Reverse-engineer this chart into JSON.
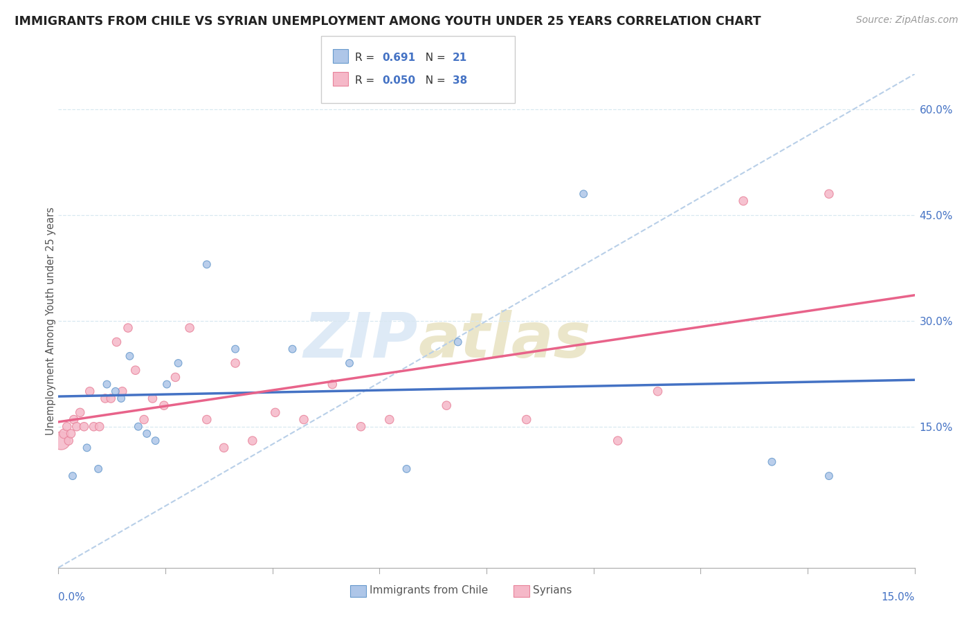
{
  "title": "IMMIGRANTS FROM CHILE VS SYRIAN UNEMPLOYMENT AMONG YOUTH UNDER 25 YEARS CORRELATION CHART",
  "source": "Source: ZipAtlas.com",
  "ylabel": "Unemployment Among Youth under 25 years",
  "legend_label1": "Immigrants from Chile",
  "legend_label2": "Syrians",
  "R1": "0.691",
  "N1": "21",
  "R2": "0.050",
  "N2": "38",
  "xmin": 0.0,
  "xmax": 15.0,
  "ymin": -5.0,
  "ymax": 65.0,
  "yticks": [
    15.0,
    30.0,
    45.0,
    60.0
  ],
  "color_blue_fill": "#aec6e8",
  "color_pink_fill": "#f5b8c8",
  "color_blue_edge": "#6699cc",
  "color_pink_edge": "#e8829a",
  "color_trendline_blue": "#4472c4",
  "color_trendline_pink": "#e8638a",
  "color_ref_line": "#b8cfe8",
  "color_grid": "#d8e8f0",
  "color_axis_label": "#4472c4",
  "scatter_blue": {
    "x": [
      0.25,
      0.5,
      0.7,
      0.85,
      1.0,
      1.1,
      1.25,
      1.4,
      1.55,
      1.7,
      1.9,
      2.1,
      2.6,
      3.1,
      4.1,
      5.1,
      6.1,
      7.0,
      9.2,
      12.5,
      13.5
    ],
    "y": [
      8,
      12,
      9,
      21,
      20,
      19,
      25,
      15,
      14,
      13,
      21,
      24,
      38,
      26,
      26,
      24,
      9,
      27,
      48,
      10,
      8
    ],
    "sizes": [
      60,
      60,
      60,
      60,
      60,
      60,
      60,
      60,
      60,
      60,
      60,
      60,
      60,
      60,
      60,
      60,
      60,
      60,
      60,
      60,
      60
    ]
  },
  "scatter_pink": {
    "x": [
      0.05,
      0.1,
      0.15,
      0.18,
      0.22,
      0.27,
      0.32,
      0.38,
      0.45,
      0.55,
      0.62,
      0.72,
      0.82,
      0.92,
      1.02,
      1.12,
      1.22,
      1.35,
      1.5,
      1.65,
      1.85,
      2.05,
      2.3,
      2.6,
      2.9,
      3.1,
      3.4,
      3.8,
      4.3,
      4.8,
      5.3,
      5.8,
      6.8,
      8.2,
      9.8,
      10.5,
      12.0,
      13.5
    ],
    "y": [
      13,
      14,
      15,
      13,
      14,
      16,
      15,
      17,
      15,
      20,
      15,
      15,
      19,
      19,
      27,
      20,
      29,
      23,
      16,
      19,
      18,
      22,
      29,
      16,
      12,
      24,
      13,
      17,
      16,
      21,
      15,
      16,
      18,
      16,
      13,
      20,
      47,
      48
    ],
    "sizes": [
      350,
      100,
      80,
      80,
      80,
      80,
      80,
      80,
      80,
      80,
      80,
      80,
      80,
      80,
      80,
      80,
      80,
      80,
      80,
      80,
      80,
      80,
      80,
      80,
      80,
      80,
      80,
      80,
      80,
      80,
      80,
      80,
      80,
      80,
      80,
      80,
      80,
      80
    ]
  }
}
